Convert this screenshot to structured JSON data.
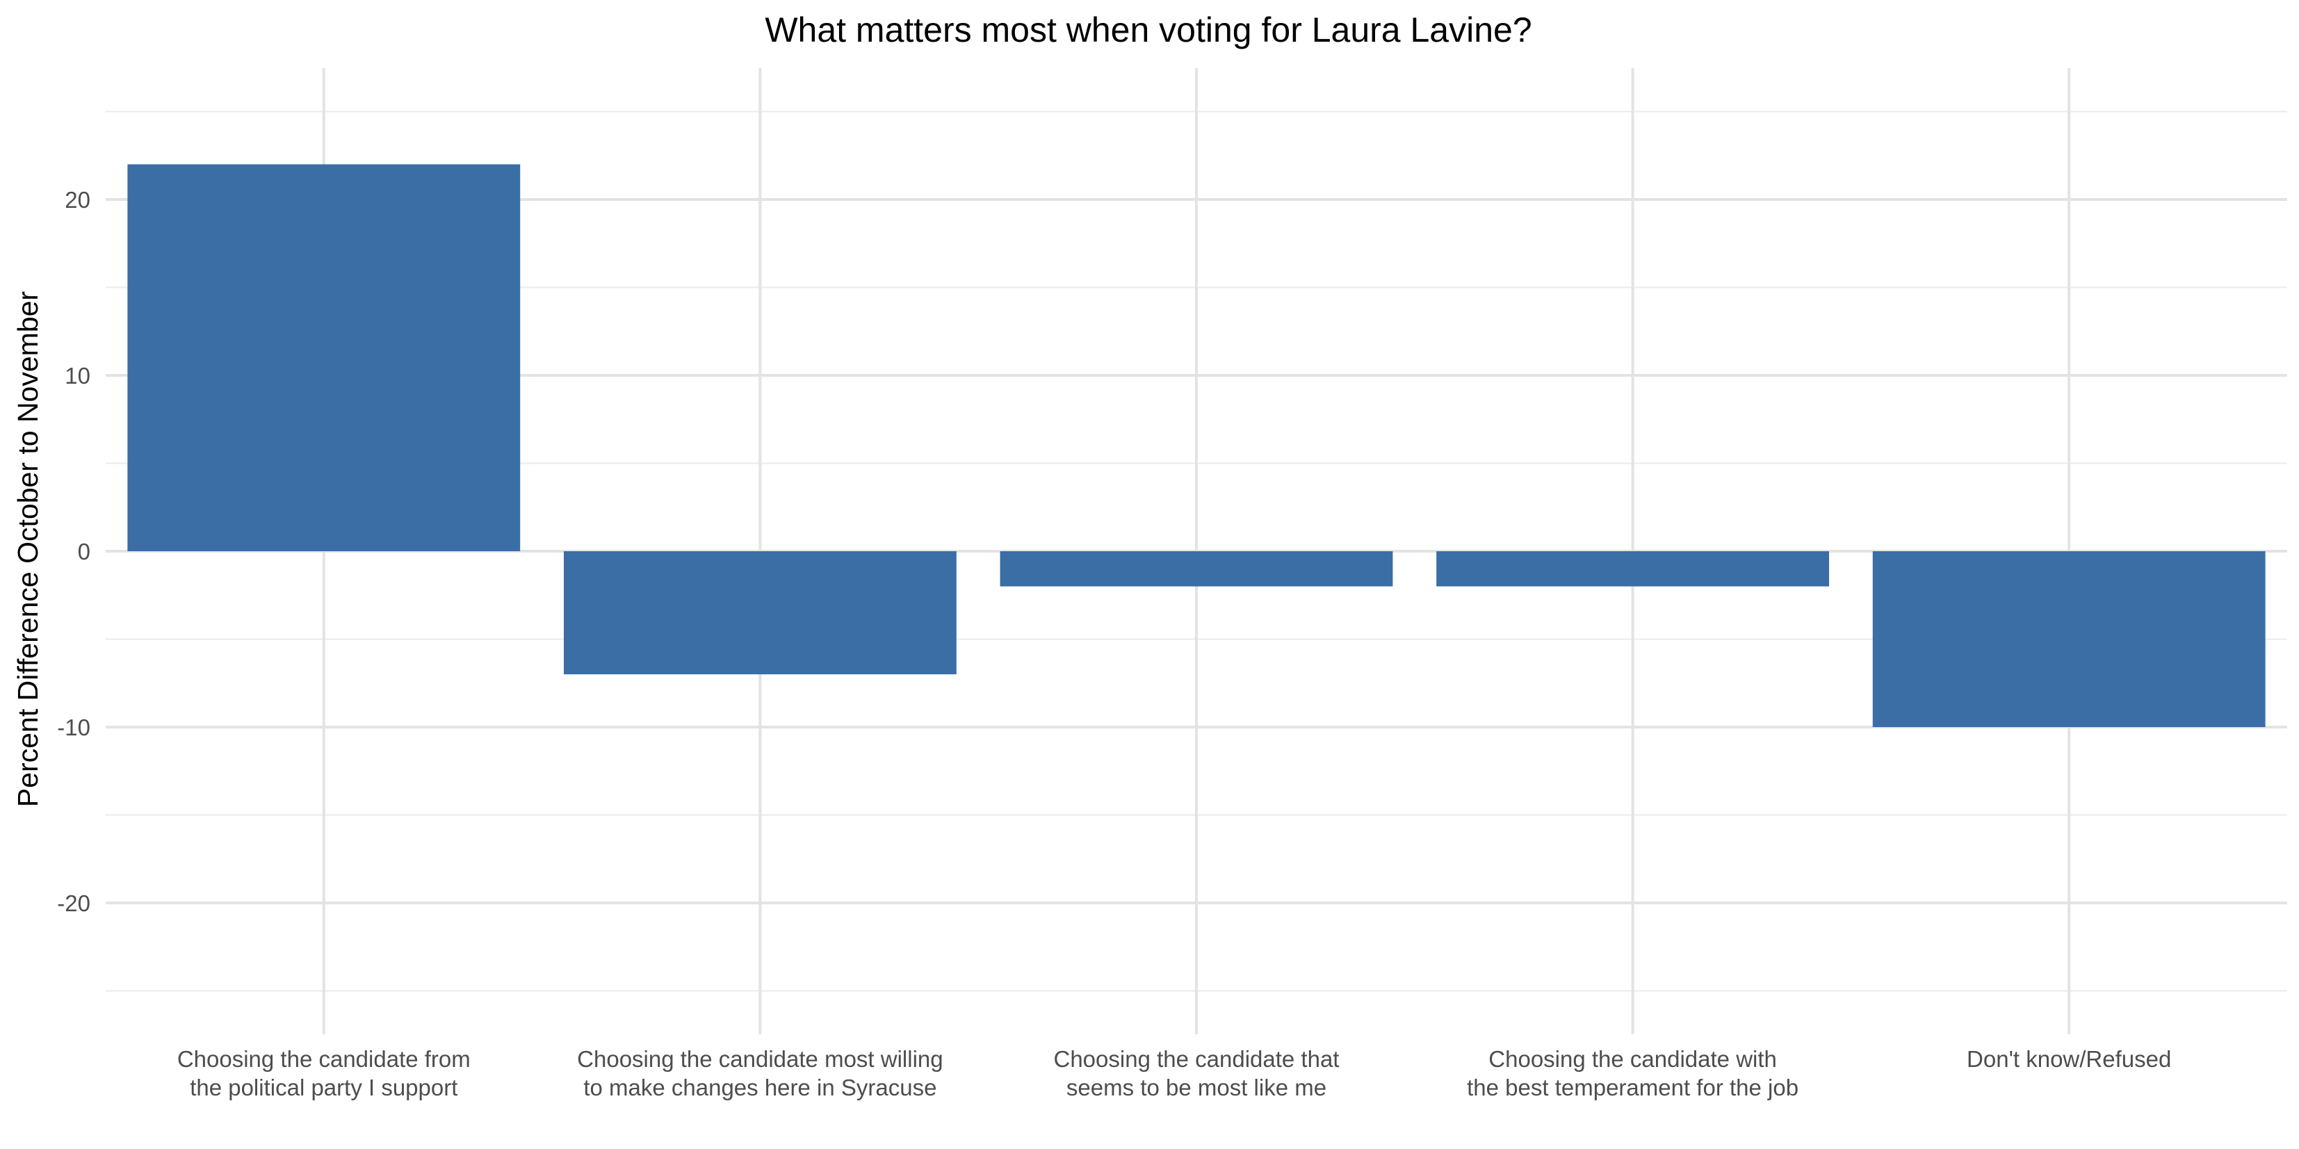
{
  "chart_data": {
    "type": "bar",
    "title": "What matters most when voting for Laura Lavine?",
    "xlabel": "",
    "ylabel": "Percent Difference October to November",
    "categories": [
      [
        "Choosing the candidate from",
        "the political party I support"
      ],
      [
        "Choosing the candidate most willing",
        "to make changes here in Syracuse"
      ],
      [
        "Choosing the candidate that",
        "seems to be most like me"
      ],
      [
        "Choosing the candidate with",
        "the best temperament for the job"
      ],
      [
        "Don't know/Refused"
      ]
    ],
    "values": [
      22,
      -7,
      -2,
      -2,
      -10
    ],
    "ylim": [
      -25,
      25
    ],
    "yticks": [
      -20,
      -10,
      0,
      10,
      20
    ],
    "bar_color": "#3a6ea5",
    "grid": true,
    "legend": "none"
  }
}
